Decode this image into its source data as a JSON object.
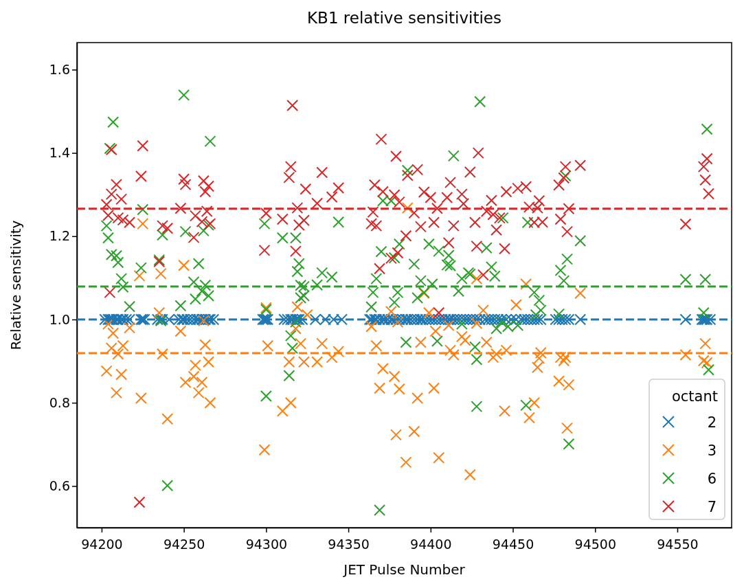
{
  "chart_data": {
    "type": "scatter",
    "title": "KB1 relative sensitivities",
    "xlabel": "JET Pulse Number",
    "ylabel": "Relative sensitivity",
    "legend_title": "octant",
    "legend": "bottom right",
    "marker": "cross",
    "grid": false,
    "xlim": [
      94185,
      94583
    ],
    "ylim": [
      0.5,
      1.665
    ],
    "xticks": [
      94200,
      94250,
      94300,
      94350,
      94400,
      94450,
      94500,
      94550
    ],
    "yticks": [
      0.6,
      0.8,
      {
        "value": 1,
        "label": "1.0"
      },
      1.2,
      1.4,
      1.6
    ],
    "ref_lines": [
      {
        "axis": "y",
        "value": 1.0,
        "color": "#1f77b4",
        "line_style": "dashed"
      },
      {
        "axis": "y",
        "value": 0.919,
        "color": "#ff7f0e",
        "line_style": "dashed"
      },
      {
        "axis": "y",
        "value": 1.079,
        "color": "#2ca02c",
        "line_style": "dashed"
      },
      {
        "axis": "y",
        "value": 1.266,
        "color": "#d62728",
        "line_style": "dashed"
      }
    ],
    "series": [
      {
        "name": "2",
        "color": "#1f77b4",
        "x": [
          94202,
          94204,
          94205,
          94206,
          94207,
          94209,
          94210,
          94212,
          94213,
          94215,
          94217,
          94224,
          94225,
          94226,
          94234,
          94236,
          94237,
          94241,
          94247,
          94249,
          94250,
          94252,
          94254,
          94256,
          94258,
          94259,
          94261,
          94262,
          94263,
          94265,
          94266,
          94268,
          94298,
          94299,
          94300,
          94301,
          94311,
          94313,
          94315,
          94316,
          94318,
          94319,
          94320,
          94322,
          94330,
          94336,
          94341,
          94346,
          94363,
          94364,
          94366,
          94367,
          94369,
          94371,
          94372,
          94374,
          94376,
          94377,
          94379,
          94381,
          94383,
          94385,
          94386,
          94388,
          94390,
          94392,
          94394,
          94395,
          94397,
          94399,
          94401,
          94403,
          94405,
          94407,
          94409,
          94411,
          94412,
          94414,
          94416,
          94418,
          94420,
          94422,
          94424,
          94426,
          94428,
          94430,
          94433,
          94435,
          94437,
          94439,
          94441,
          94443,
          94446,
          94449,
          94452,
          94455,
          94457,
          94459,
          94461,
          94463,
          94465,
          94467,
          94476,
          94478,
          94480,
          94482,
          94484,
          94491,
          94555,
          94565,
          94566,
          94567,
          94568,
          94570
        ],
        "values": [
          1,
          1,
          1,
          1,
          1,
          1,
          1,
          1,
          1,
          1,
          1,
          1,
          1,
          1,
          1,
          1,
          1,
          1,
          1,
          1,
          1,
          1,
          1,
          1,
          1,
          1,
          1,
          1,
          1,
          1,
          1,
          1,
          1,
          1,
          1,
          1,
          1,
          1,
          1,
          1,
          1,
          1,
          1,
          1,
          1,
          1,
          1,
          1,
          1,
          1,
          1,
          1,
          1,
          1,
          1,
          1,
          1,
          1,
          1,
          1,
          1,
          1,
          1,
          1,
          1,
          1,
          1,
          1,
          1,
          1,
          1,
          1,
          1,
          1,
          1,
          1,
          1,
          1,
          1,
          1,
          1,
          1,
          1,
          1,
          1,
          1,
          1,
          1,
          1,
          1,
          1,
          1,
          1,
          1,
          1,
          1,
          1,
          1,
          1,
          1,
          1,
          1,
          1,
          1,
          1,
          1,
          1,
          1,
          1,
          1,
          1,
          1,
          1,
          1
        ]
      },
      {
        "name": "3",
        "color": "#ff7f0e",
        "x": [
          94225,
          94223,
          94236,
          94250,
          94204,
          94207,
          94217,
          94206,
          94213,
          94210,
          94237,
          94235,
          94248,
          94203,
          94212,
          94209,
          94224,
          94240,
          94257,
          94265,
          94263,
          94262,
          94251,
          94256,
          94261,
          94259,
          94266,
          94299,
          94301,
          94300,
          94310,
          94315,
          94314,
          94319,
          94318,
          94321,
          94325,
          94323,
          94331,
          94334,
          94340,
          94344,
          94364,
          94367,
          94371,
          94369,
          94378,
          94381,
          94392,
          94402,
          94394,
          94379,
          94390,
          94385,
          94405,
          94424,
          94376,
          94380,
          94399,
          94403,
          94411,
          94419,
          94421,
          94412,
          94414,
          94428,
          94396,
          94386,
          94428,
          94458,
          94491,
          94452,
          94432,
          94434,
          94438,
          94440,
          94446,
          94467,
          94466,
          94465,
          94479,
          94482,
          94481,
          94478,
          94484,
          94463,
          94460,
          94445,
          94483,
          94555,
          94567,
          94566,
          94568
        ],
        "values": [
          1.23,
          1.105,
          1.11,
          1.13,
          0.989,
          0.967,
          0.98,
          0.931,
          0.937,
          0.917,
          0.917,
          1.016,
          0.972,
          0.876,
          0.868,
          0.824,
          0.811,
          0.761,
          0.89,
          0.898,
          0.939,
          0.997,
          0.849,
          0.863,
          0.849,
          0.824,
          0.8,
          0.687,
          0.937,
          1.028,
          0.78,
          0.8,
          0.898,
          1.03,
          0.978,
          0.942,
          1.011,
          0.898,
          0.898,
          0.942,
          0.909,
          0.923,
          0.983,
          0.937,
          0.882,
          0.835,
          0.863,
          0.833,
          0.811,
          0.835,
          0.945,
          0.723,
          0.731,
          0.657,
          0.668,
          0.627,
          1.019,
          0.994,
          1.016,
          0.972,
          0.986,
          0.959,
          0.95,
          0.926,
          0.915,
          0.991,
          1.063,
          1.268,
          1.098,
          1.085,
          1.063,
          1.035,
          1.022,
          0.945,
          0.909,
          0.917,
          0.926,
          0.92,
          0.907,
          0.885,
          0.909,
          0.909,
          0.901,
          0.852,
          0.843,
          0.8,
          0.764,
          0.78,
          0.739,
          0.915,
          0.942,
          0.901,
          0.896
        ]
      },
      {
        "name": "6",
        "color": "#2ca02c",
        "x": [
          94250,
          94207,
          94205,
          94266,
          94225,
          94203,
          94204,
          94206,
          94209,
          94210,
          94212,
          94213,
          94217,
          94237,
          94224,
          94235,
          94251,
          94259,
          94262,
          94265,
          94256,
          94263,
          94261,
          94265,
          94248,
          94257,
          94236,
          94240,
          94299,
          94310,
          94318,
          94320,
          94319,
          94321,
          94300,
          94315,
          94316,
          94314,
          94300,
          94318,
          94321,
          94344,
          94334,
          94340,
          94331,
          94323,
          94323,
          94371,
          94376,
          94386,
          94414,
          94370,
          94378,
          94381,
          94390,
          94399,
          94405,
          94411,
          94410,
          94412,
          94367,
          94365,
          94380,
          94394,
          94401,
          94419,
          94423,
          94417,
          94392,
          94430,
          94364,
          94378,
          94396,
          94385,
          94404,
          94419,
          94427,
          94428,
          94428,
          94369,
          94444,
          94459,
          94434,
          94424,
          94437,
          94439,
          94463,
          94466,
          94467,
          94464,
          94478,
          94443,
          94440,
          94447,
          94453,
          94458,
          94484,
          94482,
          94491,
          94483,
          94479,
          94481,
          94555,
          94567,
          94568,
          94566,
          94569
        ],
        "values": [
          1.539,
          1.474,
          1.411,
          1.428,
          1.264,
          1.225,
          1.196,
          1.156,
          1.153,
          1.137,
          1.098,
          1.078,
          1.031,
          1.203,
          1.124,
          1.143,
          1.211,
          1.134,
          1.213,
          1.227,
          1.09,
          1.082,
          1.068,
          1.057,
          1.033,
          1.049,
          0.997,
          0.601,
          1.23,
          1.196,
          1.196,
          1.134,
          1.115,
          1.082,
          1.024,
          0.961,
          0.931,
          0.865,
          0.816,
          0.994,
          1.052,
          1.234,
          1.112,
          1.102,
          1.083,
          1.079,
          1.057,
          1.285,
          1.285,
          1.358,
          1.393,
          1.163,
          1.148,
          1.181,
          1.133,
          1.181,
          1.164,
          1.154,
          1.131,
          1.129,
          1.098,
          1.065,
          1.065,
          1.093,
          1.085,
          1.098,
          1.112,
          1.068,
          1.052,
          1.523,
          1.03,
          1.041,
          1.065,
          0.945,
          0.948,
          0.989,
          0.934,
          0.904,
          0.791,
          0.542,
          1.244,
          1.233,
          1.172,
          1.109,
          1.126,
          1.104,
          1.065,
          1.046,
          1.022,
          1.011,
          1.013,
          0.994,
          0.978,
          0.983,
          0.986,
          0.794,
          0.701,
          1.345,
          1.189,
          1.145,
          1.118,
          1.093,
          1.096,
          1.096,
          1.457,
          1.016,
          0.879
        ]
      },
      {
        "name": "7",
        "color": "#d62728",
        "x": [
          94206,
          94225,
          94224,
          94209,
          94206,
          94212,
          94203,
          94204,
          94210,
          94213,
          94217,
          94248,
          94250,
          94251,
          94262,
          94265,
          94263,
          94264,
          94257,
          94261,
          94266,
          94237,
          94240,
          94235,
          94256,
          94205,
          94223,
          94299,
          94300,
          94310,
          94315,
          94314,
          94316,
          94319,
          94318,
          94320,
          94324,
          94334,
          94344,
          94340,
          94331,
          94323,
          94370,
          94379,
          94386,
          94392,
          94366,
          94371,
          94378,
          94381,
          94365,
          94364,
          94367,
          94390,
          94385,
          94380,
          94376,
          94369,
          94394,
          94396,
          94400,
          94402,
          94404,
          94412,
          94410,
          94414,
          94411,
          94419,
          94420,
          94424,
          94429,
          94427,
          94428,
          94437,
          94434,
          94438,
          94442,
          94440,
          94446,
          94453,
          94458,
          94460,
          94466,
          94465,
          94463,
          94468,
          94445,
          94432,
          94478,
          94482,
          94481,
          94491,
          94484,
          94479,
          94483,
          94555,
          94568,
          94566,
          94567,
          94569,
          94405
        ],
        "values": [
          1.408,
          1.417,
          1.344,
          1.324,
          1.301,
          1.289,
          1.276,
          1.25,
          1.244,
          1.239,
          1.233,
          1.267,
          1.337,
          1.324,
          1.333,
          1.32,
          1.307,
          1.26,
          1.249,
          1.235,
          1.23,
          1.225,
          1.219,
          1.139,
          1.197,
          1.065,
          0.561,
          1.166,
          1.255,
          1.241,
          1.367,
          1.341,
          1.514,
          1.268,
          1.164,
          1.227,
          1.313,
          1.353,
          1.316,
          1.294,
          1.279,
          1.238,
          1.433,
          1.392,
          1.346,
          1.36,
          1.323,
          1.307,
          1.299,
          1.282,
          1.258,
          1.23,
          1.225,
          1.256,
          1.201,
          1.16,
          1.147,
          1.122,
          1.223,
          1.306,
          1.293,
          1.233,
          1.267,
          1.329,
          1.293,
          1.225,
          1.184,
          1.301,
          1.278,
          1.354,
          1.4,
          1.233,
          1.176,
          1.286,
          1.26,
          1.252,
          1.244,
          1.215,
          1.307,
          1.315,
          1.319,
          1.27,
          1.285,
          1.268,
          1.233,
          1.234,
          1.17,
          1.107,
          1.323,
          1.367,
          1.34,
          1.37,
          1.266,
          1.241,
          1.211,
          1.229,
          1.386,
          1.367,
          1.335,
          1.302,
          1.016
        ]
      }
    ]
  }
}
